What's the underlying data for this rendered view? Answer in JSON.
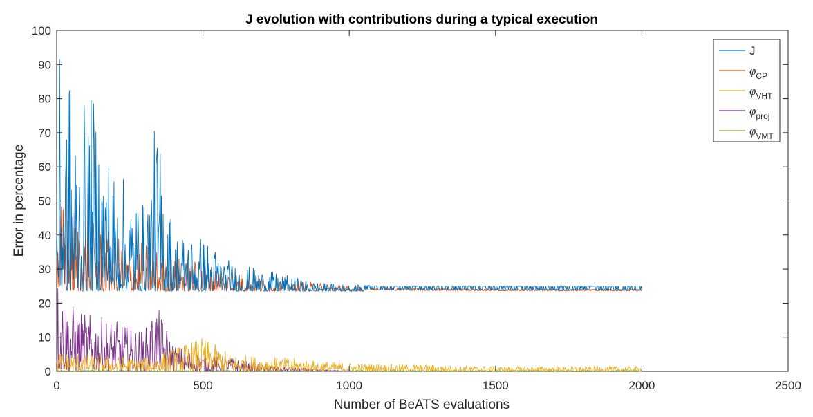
{
  "chart_data": {
    "type": "line",
    "title": "J evolution with contributions during a typical execution",
    "xlabel": "Number of BeATS evaluations",
    "ylabel": "Error in percentage",
    "xlim": [
      0,
      2500
    ],
    "ylim": [
      0,
      100
    ],
    "xticks": [
      0,
      500,
      1000,
      1500,
      2000,
      2500
    ],
    "yticks": [
      0,
      10,
      20,
      30,
      40,
      50,
      60,
      70,
      80,
      90,
      100
    ],
    "grid": false,
    "legend_position": "top-right",
    "series": [
      {
        "name": "J",
        "color": "#0072BD",
        "points": [
          [
            0,
            60
          ],
          [
            5,
            95
          ],
          [
            20,
            85
          ],
          [
            40,
            90
          ],
          [
            70,
            75
          ],
          [
            120,
            82
          ],
          [
            200,
            60
          ],
          [
            300,
            50
          ],
          [
            340,
            75
          ],
          [
            400,
            42
          ],
          [
            500,
            40
          ],
          [
            600,
            32
          ],
          [
            700,
            30
          ],
          [
            800,
            28
          ],
          [
            900,
            26
          ],
          [
            1000,
            25.5
          ],
          [
            1100,
            25
          ],
          [
            1500,
            25
          ],
          [
            2000,
            25
          ]
        ],
        "noise_floor": 23.5
      },
      {
        "name": "φ_CP",
        "color": "#D95319",
        "points": [
          [
            0,
            50
          ],
          [
            30,
            50
          ],
          [
            40,
            48
          ],
          [
            100,
            45
          ],
          [
            200,
            40
          ],
          [
            300,
            38
          ],
          [
            400,
            34
          ],
          [
            500,
            32
          ],
          [
            600,
            30
          ],
          [
            700,
            28
          ],
          [
            800,
            27
          ],
          [
            900,
            26
          ],
          [
            1000,
            25
          ],
          [
            1100,
            24.5
          ],
          [
            1500,
            24
          ],
          [
            2000,
            24
          ]
        ],
        "noise_floor": 23.5
      },
      {
        "name": "φ_VHT",
        "color": "#EDB120",
        "points": [
          [
            0,
            6
          ],
          [
            100,
            5
          ],
          [
            300,
            4
          ],
          [
            500,
            10
          ],
          [
            600,
            5
          ],
          [
            800,
            4
          ],
          [
            1000,
            2.5
          ],
          [
            1500,
            1.5
          ],
          [
            2000,
            1.5
          ]
        ],
        "noise_floor": 0
      },
      {
        "name": "φ_proj",
        "color": "#7E2F8E",
        "points": [
          [
            0,
            30
          ],
          [
            20,
            24
          ],
          [
            50,
            20
          ],
          [
            100,
            17
          ],
          [
            200,
            15
          ],
          [
            300,
            12
          ],
          [
            340,
            20
          ],
          [
            400,
            8
          ],
          [
            500,
            5
          ],
          [
            600,
            4
          ],
          [
            700,
            2
          ],
          [
            850,
            1
          ],
          [
            1000,
            0
          ]
        ],
        "noise_floor": 0
      },
      {
        "name": "φ_VMT",
        "color": "#77AC30",
        "points": [
          [
            0,
            0.3
          ],
          [
            2000,
            0.3
          ]
        ],
        "noise_floor": 0
      }
    ],
    "legend": [
      {
        "symbol": "",
        "sub": "",
        "plain": "J"
      },
      {
        "symbol": "φ",
        "sub": "CP",
        "plain": ""
      },
      {
        "symbol": "φ",
        "sub": "VHT",
        "plain": ""
      },
      {
        "symbol": "φ",
        "sub": "proj",
        "plain": ""
      },
      {
        "symbol": "φ",
        "sub": "VMT",
        "plain": ""
      }
    ]
  }
}
